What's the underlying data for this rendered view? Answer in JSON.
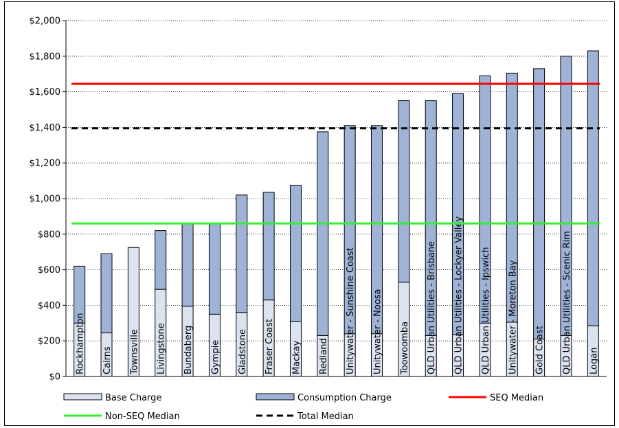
{
  "chart_data": {
    "type": "bar",
    "stacked": true,
    "title": "",
    "xlabel": "",
    "ylabel": "",
    "ylim": [
      0,
      2000
    ],
    "yticks": [
      0,
      200,
      400,
      600,
      800,
      1000,
      1200,
      1400,
      1600,
      1800,
      2000
    ],
    "ytick_labels": [
      "$0",
      "$200",
      "$400",
      "$600",
      "$800",
      "$1,000",
      "$1,200",
      "$1,400",
      "$1,600",
      "$1,800",
      "$2,000"
    ],
    "grid": "horizontal dotted",
    "legend_position": "bottom",
    "categories": [
      "Rockhampton",
      "Cairns",
      "Townsville",
      "Livingstone",
      "Bundaberg",
      "Gympie",
      "Gladstone",
      "Fraser Coast",
      "Mackay",
      "Redland",
      "Unitywater - Sunshine Coast",
      "Unitywater - Noosa",
      "Toowoomba",
      "QLD Urban Utilities - Brisbane",
      "QLD Urban Utilities - Lockyer Valley",
      "QLD Urban Utilities - Ipswich",
      "Unitywater - Moreton Bay",
      "Gold Coast",
      "QLD Urban Utilities - Scenic Rim",
      "Logan"
    ],
    "series": [
      {
        "name": "Base Charge",
        "color": "#dbe3f1",
        "values": [
          300,
          245,
          725,
          490,
          395,
          350,
          360,
          430,
          310,
          230,
          240,
          240,
          530,
          230,
          235,
          300,
          305,
          210,
          230,
          285
        ]
      },
      {
        "name": "Consumption Charge",
        "color": "#9fb3d7",
        "values": [
          320,
          445,
          0,
          330,
          465,
          510,
          660,
          605,
          765,
          1145,
          1170,
          1170,
          1020,
          1320,
          1355,
          1390,
          1400,
          1520,
          1570,
          1545
        ]
      }
    ],
    "reference_lines": [
      {
        "name": "SEQ Median",
        "value": 1645,
        "color": "#ff0000",
        "style": "solid"
      },
      {
        "name": "Non-SEQ Median",
        "value": 860,
        "color": "#33ee33",
        "style": "solid"
      },
      {
        "name": "Total Median",
        "value": 1395,
        "color": "#000000",
        "style": "dashed"
      }
    ]
  }
}
